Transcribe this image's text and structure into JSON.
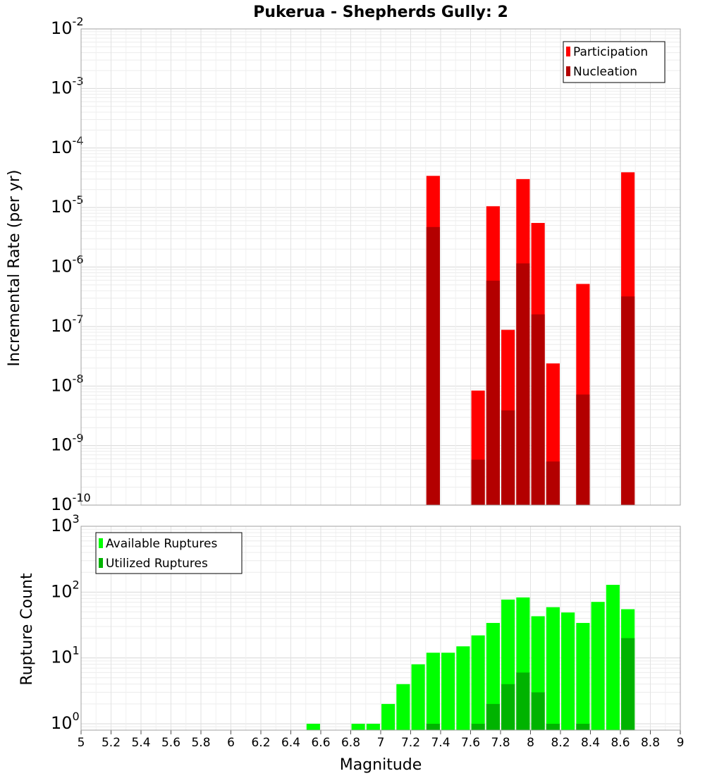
{
  "chart_data": [
    {
      "type": "bar",
      "title": "Pukerua - Shepherds Gully: 2",
      "ylabel": "Incremental Rate (per yr)",
      "yscale": "log",
      "ylim": [
        1e-10,
        0.01
      ],
      "xlim": [
        5,
        9
      ],
      "legend_position": "top-right",
      "grid": true,
      "bar_width": 0.09,
      "series": [
        {
          "name": "Participation",
          "color": "#ff0000",
          "x": [
            7.35,
            7.65,
            7.75,
            7.85,
            7.95,
            8.05,
            8.15,
            8.35,
            8.65
          ],
          "values": [
            3.4e-05,
            8.4e-09,
            1.05e-05,
            8.8e-08,
            3e-05,
            5.5e-06,
            2.4e-08,
            5.2e-07,
            3.9e-05
          ]
        },
        {
          "name": "Nucleation",
          "color": "#b30000",
          "x": [
            7.35,
            7.65,
            7.75,
            7.85,
            7.95,
            8.05,
            8.15,
            8.35,
            8.65
          ],
          "values": [
            4.7e-06,
            5.8e-10,
            5.9e-07,
            3.9e-09,
            1.15e-06,
            1.6e-07,
            5.4e-10,
            7.2e-09,
            3.2e-07
          ]
        }
      ]
    },
    {
      "type": "bar",
      "xlabel": "Magnitude",
      "ylabel": "Rupture Count",
      "yscale": "log",
      "ylim": [
        0.8,
        1000
      ],
      "xlim": [
        5,
        9
      ],
      "xticks": [
        "5",
        "5.2",
        "5.4",
        "5.6",
        "5.8",
        "6",
        "6.2",
        "6.4",
        "6.6",
        "6.8",
        "7",
        "7.2",
        "7.4",
        "7.6",
        "7.8",
        "8",
        "8.2",
        "8.4",
        "8.6",
        "8.8",
        "9"
      ],
      "legend_position": "top-left",
      "grid": true,
      "bar_width": 0.09,
      "series": [
        {
          "name": "Available Ruptures",
          "color": "#00ff00",
          "x": [
            6.55,
            6.85,
            6.95,
            7.05,
            7.15,
            7.25,
            7.35,
            7.45,
            7.55,
            7.65,
            7.75,
            7.85,
            7.95,
            8.05,
            8.15,
            8.25,
            8.35,
            8.45,
            8.55,
            8.65
          ],
          "values": [
            1,
            1,
            1,
            2,
            4,
            8,
            12,
            12,
            15,
            22,
            34,
            77,
            83,
            43,
            59,
            49,
            34,
            71,
            129,
            55
          ]
        },
        {
          "name": "Utilized Ruptures",
          "color": "#00b300",
          "x": [
            7.35,
            7.65,
            7.75,
            7.85,
            7.95,
            8.05,
            8.15,
            8.35,
            8.65
          ],
          "values": [
            1,
            1,
            2,
            4,
            6,
            3,
            1,
            1,
            20
          ]
        }
      ]
    }
  ]
}
